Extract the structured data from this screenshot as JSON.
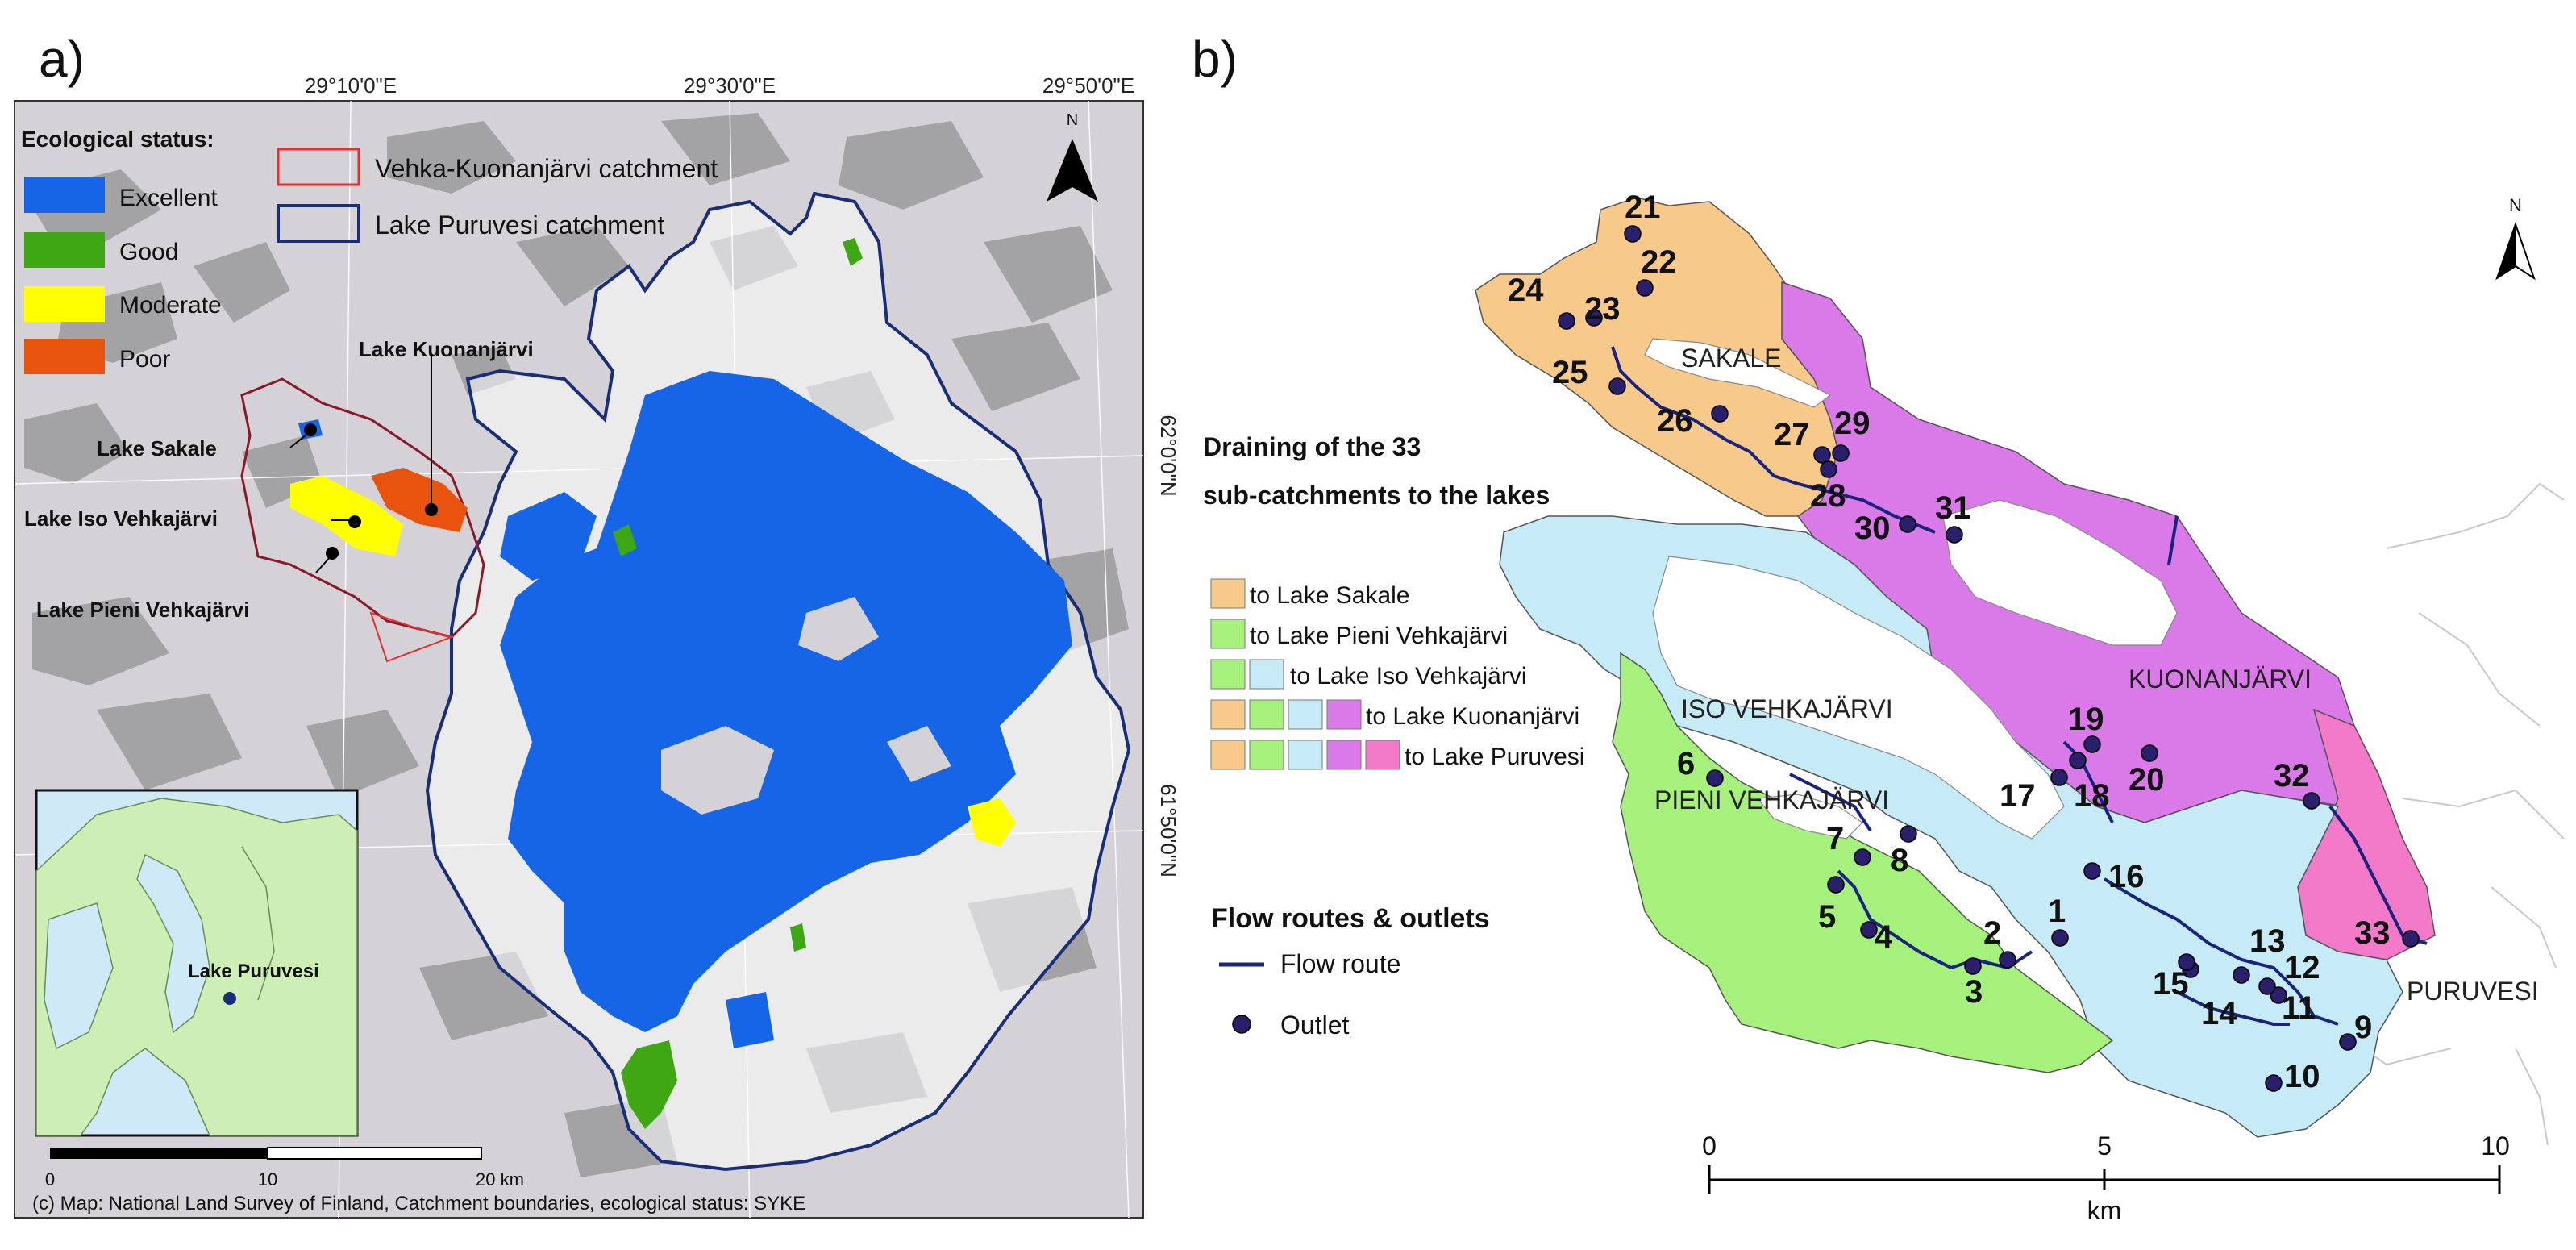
{
  "panel_a": {
    "label": "a)",
    "coord_top": [
      "29°10'0\"E",
      "29°30'0\"E",
      "29°50'0\"E"
    ],
    "coord_right": [
      "62°0'0\"N",
      "61°50'0\"N"
    ],
    "north": "N",
    "legend_title": "Ecological status:",
    "status": [
      {
        "label": "Excellent",
        "color": "#1565e6"
      },
      {
        "label": "Good",
        "color": "#3fa614"
      },
      {
        "label": "Moderate",
        "color": "#ffff00"
      },
      {
        "label": "Poor",
        "color": "#e8530e"
      }
    ],
    "catchments": [
      {
        "label": "Vehka-Kuonanjärvi catchment",
        "color": "#e53030"
      },
      {
        "label": "Lake Puruvesi catchment",
        "color": "#1a2e78"
      }
    ],
    "lake_labels": [
      "Lake Kuonanjärvi",
      "Lake Sakale",
      "Lake Iso Vehkajärvi",
      "Lake Pieni Vehkajärvi"
    ],
    "inset_label": "Lake Puruvesi",
    "scale": [
      "0",
      "10",
      "20 km"
    ],
    "credit": "(c) Map: National Land Survey of Finland, Catchment boundaries, ecological status: SYKE"
  },
  "panel_b": {
    "label": "b)",
    "north": "N",
    "title_line1": "Draining of the 33",
    "title_line2": "sub-catchments to the lakes",
    "legend_rows": [
      {
        "swatches": [
          "#f7c98a"
        ],
        "label": "to Lake Sakale"
      },
      {
        "swatches": [
          "#a6f07c"
        ],
        "label": "to Lake Pieni Vehkajärvi"
      },
      {
        "swatches": [
          "#a6f07c",
          "#c6ebf6"
        ],
        "label": "to Lake Iso Vehkajärvi"
      },
      {
        "swatches": [
          "#f7c98a",
          "#a6f07c",
          "#c6ebf6",
          "#d97ae8"
        ],
        "label": "to Lake Kuonanjärvi"
      },
      {
        "swatches": [
          "#f7c98a",
          "#a6f07c",
          "#c6ebf6",
          "#d97ae8",
          "#f27ac8"
        ],
        "label": "to Lake Puruvesi"
      }
    ],
    "flow_title": "Flow routes & outlets",
    "flow_route_label": "Flow route",
    "outlet_label": "Outlet",
    "lake_names": [
      "SAKALE",
      "ISO VEHKAJÄRVI",
      "PIENI VEHKAJÄRVI",
      "KUONANJÄRVI",
      "PURUVESI"
    ],
    "scale_ticks": [
      "0",
      "5",
      "10"
    ],
    "scale_unit": "km",
    "subcatchments": [
      "1",
      "2",
      "3",
      "4",
      "5",
      "6",
      "7",
      "8",
      "9",
      "10",
      "11",
      "12",
      "13",
      "14",
      "15",
      "16",
      "17",
      "18",
      "19",
      "20",
      "21",
      "22",
      "23",
      "24",
      "25",
      "26",
      "27",
      "28",
      "29",
      "30",
      "31",
      "32",
      "33"
    ]
  }
}
